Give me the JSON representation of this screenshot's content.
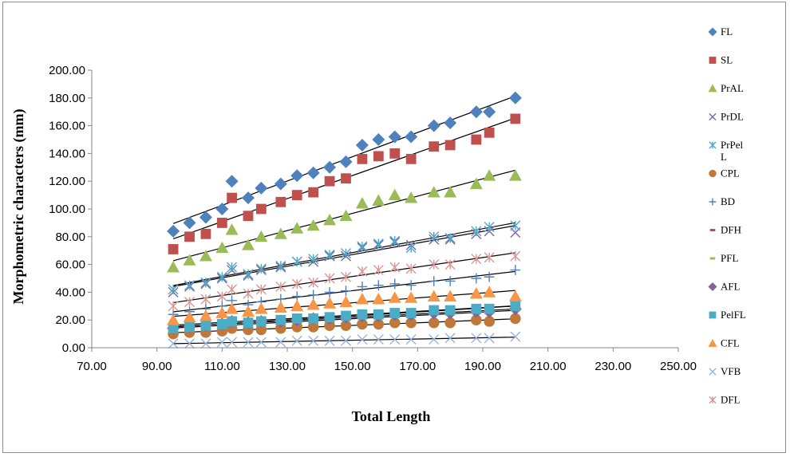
{
  "chart_data": {
    "type": "scatter",
    "title": "",
    "xlabel": "Total Length",
    "ylabel": "Morphometric characters (mm)",
    "xlim": [
      70,
      250
    ],
    "ylim": [
      0,
      200
    ],
    "x_ticks": [
      "70.00",
      "90.00",
      "110.00",
      "130.00",
      "150.00",
      "170.00",
      "190.00",
      "210.00",
      "230.00",
      "250.00"
    ],
    "y_ticks": [
      "0.00",
      "20.00",
      "40.00",
      "60.00",
      "80.00",
      "100.00",
      "120.00",
      "140.00",
      "160.00",
      "180.00",
      "200.00"
    ],
    "legend_position": "right",
    "trendlines": true,
    "x": [
      95,
      100,
      105,
      110,
      113,
      118,
      122,
      128,
      133,
      138,
      143,
      148,
      153,
      158,
      163,
      168,
      175,
      180,
      188,
      192,
      200
    ],
    "series": [
      {
        "name": "FL",
        "marker": "diamond",
        "color": "#4f81bd",
        "values": [
          84,
          90,
          94,
          100,
          120,
          108,
          115,
          118,
          124,
          126,
          130,
          134,
          146,
          150,
          152,
          152,
          160,
          162,
          170,
          170,
          180
        ]
      },
      {
        "name": "SL",
        "marker": "square",
        "color": "#c0504d",
        "values": [
          71,
          80,
          82,
          90,
          108,
          95,
          100,
          105,
          110,
          112,
          120,
          122,
          136,
          138,
          140,
          136,
          145,
          146,
          150,
          155,
          165
        ]
      },
      {
        "name": "PrAL",
        "marker": "triangle",
        "color": "#9bbb59",
        "values": [
          58,
          63,
          66,
          72,
          85,
          74,
          80,
          82,
          86,
          88,
          92,
          95,
          104,
          106,
          110,
          108,
          112,
          112,
          118,
          124,
          124
        ]
      },
      {
        "name": "PrDL",
        "marker": "x",
        "color": "#8064a2",
        "values": [
          40,
          44,
          46,
          50,
          56,
          52,
          56,
          58,
          62,
          62,
          66,
          66,
          72,
          74,
          76,
          74,
          78,
          78,
          82,
          84,
          83
        ]
      },
      {
        "name": "PrPelL",
        "marker": "asterisk",
        "color": "#4bacc6",
        "values": [
          42,
          45,
          47,
          51,
          58,
          53,
          57,
          59,
          62,
          64,
          67,
          68,
          73,
          75,
          77,
          72,
          80,
          79,
          84,
          87,
          88
        ]
      },
      {
        "name": "CPL",
        "marker": "circle",
        "color": "#c0783a",
        "values": [
          10,
          11,
          11,
          12,
          14,
          13,
          13,
          14,
          15,
          15,
          16,
          16,
          17,
          17,
          18,
          18,
          18,
          18,
          20,
          19,
          21
        ]
      },
      {
        "name": "BD",
        "marker": "plus",
        "color": "#4f81bd",
        "values": [
          24,
          26,
          28,
          30,
          34,
          31,
          33,
          35,
          37,
          38,
          40,
          41,
          44,
          45,
          46,
          45,
          48,
          48,
          50,
          51,
          56
        ]
      },
      {
        "name": "DFH",
        "marker": "dash",
        "color": "#c0504d",
        "values": [
          15,
          16,
          17,
          18,
          20,
          19,
          20,
          21,
          22,
          22,
          23,
          24,
          25,
          25,
          26,
          26,
          27,
          27,
          28,
          28,
          30
        ]
      },
      {
        "name": "PFL",
        "marker": "dash",
        "color": "#9bbb59",
        "values": [
          13,
          14,
          15,
          16,
          18,
          17,
          18,
          18,
          19,
          20,
          20,
          21,
          22,
          22,
          23,
          23,
          24,
          24,
          25,
          25,
          27
        ]
      },
      {
        "name": "AFL",
        "marker": "diamond",
        "color": "#8064a2",
        "values": [
          14,
          15,
          16,
          17,
          19,
          18,
          19,
          19,
          20,
          21,
          21,
          22,
          23,
          23,
          24,
          24,
          25,
          25,
          26,
          26,
          28
        ]
      },
      {
        "name": "PelFL",
        "marker": "square",
        "color": "#4bacc6",
        "values": [
          14,
          15,
          16,
          17,
          19,
          18,
          19,
          20,
          21,
          21,
          22,
          23,
          24,
          24,
          25,
          25,
          27,
          27,
          28,
          28,
          30
        ]
      },
      {
        "name": "CFL",
        "marker": "triangle",
        "color": "#f79646",
        "values": [
          20,
          22,
          23,
          25,
          28,
          26,
          28,
          29,
          30,
          31,
          32,
          33,
          35,
          35,
          36,
          36,
          37,
          37,
          39,
          40,
          37
        ]
      },
      {
        "name": "VFB",
        "marker": "x",
        "color": "#95b3d7",
        "values": [
          3,
          3,
          3,
          4,
          4,
          4,
          4,
          4,
          5,
          5,
          5,
          5,
          6,
          6,
          6,
          6,
          6,
          7,
          7,
          7,
          8
        ]
      },
      {
        "name": "DFL",
        "marker": "asterisk",
        "color": "#d99694",
        "values": [
          30,
          33,
          35,
          37,
          42,
          39,
          42,
          44,
          46,
          47,
          50,
          51,
          55,
          56,
          58,
          57,
          60,
          60,
          64,
          65,
          66
        ]
      }
    ]
  }
}
